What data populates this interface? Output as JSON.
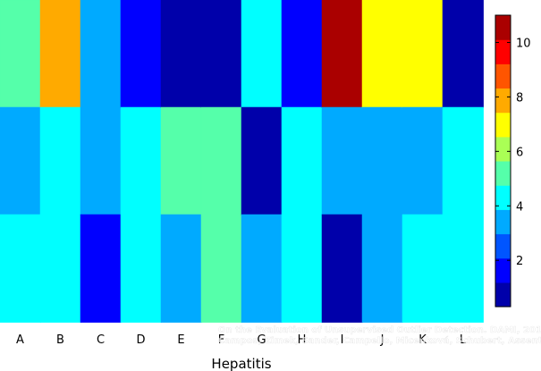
{
  "chart_data": {
    "type": "heatmap",
    "xlabel": "Hepatitis",
    "x_categories": [
      "A",
      "B",
      "C",
      "D",
      "E",
      "F",
      "G",
      "H",
      "I",
      "J",
      "K",
      "L"
    ],
    "columns": [
      {
        "segments": [
          {
            "rows": 1,
            "value": 4.8
          },
          {
            "rows": 1,
            "value": 3.0
          },
          {
            "rows": 1,
            "value": 4.0
          }
        ]
      },
      {
        "segments": [
          {
            "rows": 1,
            "value": 7.8
          },
          {
            "rows": 2,
            "value": 4.0
          }
        ]
      },
      {
        "segments": [
          {
            "rows": 2,
            "value": 3.0
          },
          {
            "rows": 1,
            "value": 1.7
          }
        ]
      },
      {
        "segments": [
          {
            "rows": 1,
            "value": 1.7
          },
          {
            "rows": 2,
            "value": 4.0
          }
        ]
      },
      {
        "segments": [
          {
            "rows": 1,
            "value": 0.9
          },
          {
            "rows": 1,
            "value": 4.8
          },
          {
            "rows": 1,
            "value": 3.0
          }
        ]
      },
      {
        "segments": [
          {
            "rows": 1,
            "value": 0.9
          },
          {
            "rows": 2,
            "value": 4.8
          }
        ]
      },
      {
        "segments": [
          {
            "rows": 1,
            "value": 4.0
          },
          {
            "rows": 1,
            "value": 0.9
          },
          {
            "rows": 1,
            "value": 3.0
          }
        ]
      },
      {
        "segments": [
          {
            "rows": 1,
            "value": 1.7
          },
          {
            "rows": 2,
            "value": 4.0
          }
        ]
      },
      {
        "segments": [
          {
            "rows": 1,
            "value": 10.2
          },
          {
            "rows": 1,
            "value": 3.0
          },
          {
            "rows": 1,
            "value": 0.9
          }
        ]
      },
      {
        "segments": [
          {
            "rows": 1,
            "value": 7.0
          },
          {
            "rows": 2,
            "value": 3.0
          }
        ]
      },
      {
        "segments": [
          {
            "rows": 1,
            "value": 7.0
          },
          {
            "rows": 1,
            "value": 3.0
          },
          {
            "rows": 1,
            "value": 4.0
          }
        ]
      },
      {
        "segments": [
          {
            "rows": 1,
            "value": 0.9
          },
          {
            "rows": 2,
            "value": 4.0
          }
        ]
      }
    ],
    "colorbar": {
      "colormap": "jet",
      "ticks": [
        "2",
        "4",
        "6",
        "8",
        "10"
      ],
      "tick_values": [
        2,
        4,
        6,
        8,
        10
      ],
      "range": [
        0.3,
        11.0
      ],
      "levels": 12
    },
    "grid": false
  },
  "watermark": {
    "line1": "On the Evaluation of Unsupervised Outlier Detection. DAMI, 2015.",
    "line2": "Campos, Zimek, Sander, Campello, Micenková, Schubert, Assent, Houle"
  }
}
